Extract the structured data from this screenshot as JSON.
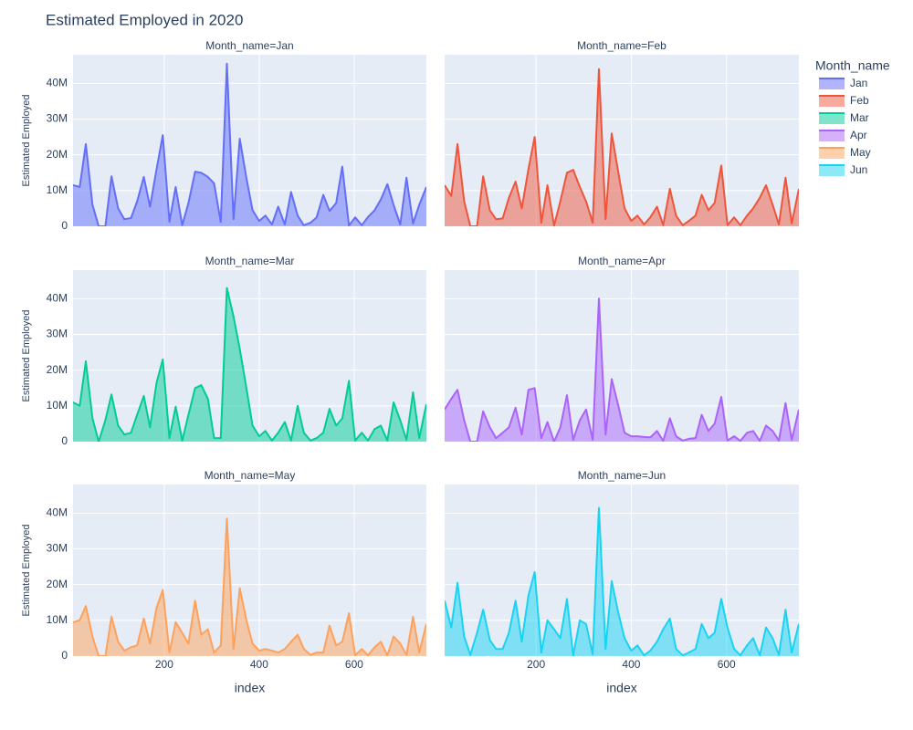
{
  "chart_data": {
    "type": "area",
    "title": "Estimated Employed in 2020",
    "x_label": "index",
    "y_label": "Estimated Employed",
    "legend_title": "Month_name",
    "facet_titles": [
      "Month_name=Jan",
      "Month_name=Feb",
      "Month_name=Mar",
      "Month_name=Apr",
      "Month_name=May",
      "Month_name=Jun"
    ],
    "grid": true,
    "xlim": [
      8,
      752
    ],
    "xticks": [
      200,
      400,
      600
    ],
    "ylim": [
      0,
      48000000.0
    ],
    "yticks": [
      0,
      {
        "value": 10000000.0,
        "label": "10M"
      },
      {
        "value": 20000000.0,
        "label": "20M"
      },
      {
        "value": 30000000.0,
        "label": "30M"
      },
      {
        "value": 40000000.0,
        "label": "40M"
      }
    ],
    "x": [
      8,
      22,
      35,
      49,
      62,
      76,
      89,
      103,
      116,
      130,
      143,
      157,
      170,
      184,
      197,
      211,
      224,
      238,
      251,
      265,
      278,
      292,
      305,
      319,
      332,
      346,
      359,
      373,
      386,
      400,
      413,
      427,
      440,
      454,
      467,
      481,
      494,
      508,
      521,
      535,
      548,
      562,
      575,
      589,
      602,
      616,
      629,
      643,
      656,
      670,
      683,
      697,
      710,
      724,
      737,
      752
    ],
    "series": [
      {
        "name": "Jan",
        "color": "#636efa",
        "values": [
          11500000.0,
          11000000.0,
          23000000.0,
          6000000.0,
          0,
          0,
          14000000.0,
          5000000.0,
          2000000.0,
          2300000.0,
          7000000.0,
          13800000.0,
          5500000.0,
          16000000.0,
          25500000.0,
          1300000.0,
          11000000.0,
          300000.0,
          6500000.0,
          15300000.0,
          15000000.0,
          13800000.0,
          12000000.0,
          1200000.0,
          45500000.0,
          2000000.0,
          24500000.0,
          13500000.0,
          4500000.0,
          1500000.0,
          3000000.0,
          500000.0,
          5500000.0,
          500000.0,
          9600000.0,
          3000000.0,
          300000.0,
          1000000.0,
          2500000.0,
          8800000.0,
          4300000.0,
          6500000.0,
          16700000.0,
          200000.0,
          2500000.0,
          300000.0,
          2600000.0,
          4500000.0,
          7500000.0,
          11800000.0,
          6000000.0,
          500000.0,
          13600000.0,
          800000.0,
          6000000.0,
          11000000.0
        ]
      },
      {
        "name": "Feb",
        "color": "#ef553b",
        "values": [
          11500000.0,
          8500000.0,
          23000000.0,
          7000000.0,
          0,
          0,
          14000000.0,
          4500000.0,
          2000000.0,
          2200000.0,
          8000000.0,
          12500000.0,
          5000000.0,
          16000000.0,
          25000000.0,
          1000000.0,
          11500000.0,
          200000.0,
          7000000.0,
          15000000.0,
          15800000.0,
          11000000.0,
          7000000.0,
          1000000.0,
          44000000.0,
          2000000.0,
          26000000.0,
          15000000.0,
          5000000.0,
          1500000.0,
          3000000.0,
          500000.0,
          2500000.0,
          5500000.0,
          300000.0,
          10500000.0,
          3000000.0,
          300000.0,
          1500000.0,
          3000000.0,
          8800000.0,
          4500000.0,
          6500000.0,
          17000000.0,
          300000.0,
          2500000.0,
          300000.0,
          3000000.0,
          5000000.0,
          8000000.0,
          11500000.0,
          6000000.0,
          500000.0,
          13600000.0,
          800000.0,
          10500000.0
        ]
      },
      {
        "name": "Mar",
        "color": "#00cc96",
        "values": [
          11000000.0,
          10000000.0,
          22500000.0,
          6500000.0,
          0,
          6000000.0,
          13200000.0,
          4500000.0,
          2000000.0,
          2500000.0,
          7500000.0,
          12800000.0,
          4000000.0,
          16500000.0,
          23000000.0,
          1000000.0,
          9800000.0,
          300000.0,
          7500000.0,
          15000000.0,
          15800000.0,
          12000000.0,
          1000000.0,
          1000000.0,
          43000000.0,
          35000000.0,
          26000000.0,
          15000000.0,
          4500000.0,
          1500000.0,
          3000000.0,
          300000.0,
          2500000.0,
          5500000.0,
          300000.0,
          10000000.0,
          2500000.0,
          300000.0,
          1000000.0,
          2500000.0,
          9200000.0,
          4500000.0,
          6500000.0,
          17000000.0,
          300000.0,
          2500000.0,
          300000.0,
          3500000.0,
          4500000.0,
          300000.0,
          11000000.0,
          6000000.0,
          500000.0,
          13800000.0,
          1000000.0,
          10500000.0
        ]
      },
      {
        "name": "Apr",
        "color": "#ab63fa",
        "values": [
          9000000.0,
          12000000.0,
          14500000.0,
          6000000.0,
          0,
          0,
          8500000.0,
          4000000.0,
          1000000.0,
          2500000.0,
          4000000.0,
          9500000.0,
          2000000.0,
          14500000.0,
          15000000.0,
          1000000.0,
          5500000.0,
          0,
          4000000.0,
          13000000.0,
          500000.0,
          6000000.0,
          9000000.0,
          500000.0,
          40000000.0,
          2000000.0,
          17500000.0,
          10000000.0,
          2500000.0,
          1500000.0,
          1500000.0,
          1300000.0,
          1200000.0,
          3000000.0,
          200000.0,
          6500000.0,
          1500000.0,
          300000.0,
          800000.0,
          1000000.0,
          7500000.0,
          3000000.0,
          5000000.0,
          12500000.0,
          300000.0,
          1500000.0,
          200000.0,
          2500000.0,
          3000000.0,
          200000.0,
          4500000.0,
          3000000.0,
          300000.0,
          10800000.0,
          500000.0,
          9000000.0
        ]
      },
      {
        "name": "May",
        "color": "#ffa15a",
        "values": [
          9500000.0,
          10000000.0,
          14000000.0,
          5500000.0,
          0,
          0,
          11000000.0,
          4000000.0,
          1500000.0,
          2500000.0,
          3000000.0,
          10500000.0,
          3500000.0,
          13500000.0,
          18500000.0,
          1000000.0,
          9500000.0,
          6500000.0,
          3500000.0,
          15500000.0,
          6000000.0,
          7500000.0,
          1000000.0,
          3000000.0,
          38500000.0,
          2000000.0,
          19000000.0,
          10000000.0,
          3500000.0,
          1500000.0,
          2000000.0,
          1500000.0,
          1000000.0,
          2000000.0,
          4000000.0,
          6000000.0,
          2000000.0,
          300000.0,
          1000000.0,
          1000000.0,
          8500000.0,
          3000000.0,
          4000000.0,
          12000000.0,
          200000.0,
          2000000.0,
          200000.0,
          2500000.0,
          4000000.0,
          200000.0,
          5500000.0,
          3500000.0,
          300000.0,
          11000000.0,
          1000000.0,
          9000000.0
        ]
      },
      {
        "name": "Jun",
        "color": "#19d3f3",
        "values": [
          15500000.0,
          8000000.0,
          20500000.0,
          5500000.0,
          300000.0,
          6500000.0,
          13000000.0,
          4500000.0,
          2000000.0,
          2000000.0,
          6500000.0,
          15500000.0,
          4000000.0,
          17000000.0,
          23500000.0,
          1000000.0,
          10000000.0,
          7500000.0,
          5000000.0,
          16000000.0,
          200000.0,
          10000000.0,
          9000000.0,
          500000.0,
          41500000.0,
          2000000.0,
          21000000.0,
          12000000.0,
          5000000.0,
          1500000.0,
          3000000.0,
          200000.0,
          1500000.0,
          4000000.0,
          7500000.0,
          10500000.0,
          2000000.0,
          200000.0,
          1000000.0,
          2000000.0,
          9000000.0,
          5000000.0,
          6500000.0,
          16000000.0,
          8000000.0,
          2000000.0,
          200000.0,
          3000000.0,
          5000000.0,
          200000.0,
          8000000.0,
          5000000.0,
          300000.0,
          13000000.0,
          1000000.0,
          9000000.0
        ]
      }
    ]
  }
}
